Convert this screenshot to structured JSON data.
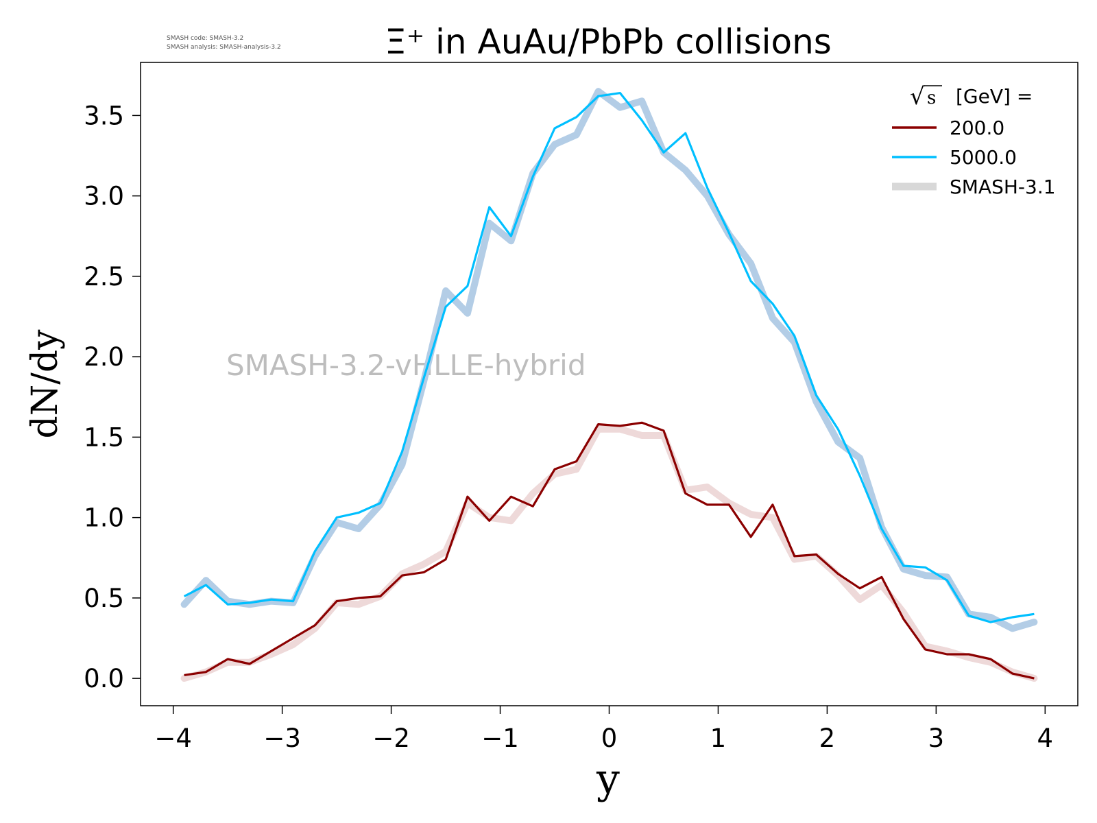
{
  "meta": {
    "code_line": "SMASH code:      SMASH-3.2",
    "analysis_line": "SMASH analysis: SMASH-analysis-3.2"
  },
  "chart_data": {
    "type": "line",
    "title": "Ξ⁺ in AuAu/PbPb collisions",
    "xlabel": "y",
    "ylabel": "dN/dy",
    "xlim": [
      -4.3,
      4.3
    ],
    "ylim": [
      -0.17,
      3.83
    ],
    "xticks": [
      -4,
      -3,
      -2,
      -1,
      0,
      1,
      2,
      3,
      4
    ],
    "xtick_labels": [
      "−4",
      "−3",
      "−2",
      "−1",
      "0",
      "1",
      "2",
      "3",
      "4"
    ],
    "yticks": [
      0.0,
      0.5,
      1.0,
      1.5,
      2.0,
      2.5,
      3.0,
      3.5
    ],
    "ytick_labels": [
      "0.0",
      "0.5",
      "1.0",
      "1.5",
      "2.0",
      "2.5",
      "3.0",
      "3.5"
    ],
    "grid": false,
    "watermark": "SMASH-3.2-vHLLE-hybrid",
    "legend": {
      "placement": "top-right",
      "title_prefix": "√s",
      "title_suffix": "[GeV] =",
      "entries": [
        "200.0",
        "5000.0",
        "SMASH-3.1"
      ]
    },
    "x": [
      -3.9,
      -3.7,
      -3.5,
      -3.3,
      -3.1,
      -2.9,
      -2.7,
      -2.5,
      -2.3,
      -2.1,
      -1.9,
      -1.7,
      -1.5,
      -1.3,
      -1.1,
      -0.9,
      -0.7,
      -0.5,
      -0.3,
      -0.1,
      0.1,
      0.3,
      0.5,
      0.7,
      0.9,
      1.1,
      1.3,
      1.5,
      1.7,
      1.9,
      2.1,
      2.3,
      2.5,
      2.7,
      2.9,
      3.1,
      3.3,
      3.5,
      3.7,
      3.9
    ],
    "series": [
      {
        "name": "200.0",
        "color": "#8b0000",
        "reference": [
          0.0,
          0.04,
          0.1,
          0.1,
          0.15,
          0.21,
          0.31,
          0.47,
          0.46,
          0.51,
          0.65,
          0.71,
          0.79,
          1.09,
          1.0,
          0.98,
          1.15,
          1.27,
          1.3,
          1.55,
          1.55,
          1.51,
          1.51,
          1.17,
          1.19,
          1.09,
          1.02,
          1.0,
          0.74,
          0.76,
          0.64,
          0.49,
          0.58,
          0.41,
          0.2,
          0.17,
          0.13,
          0.1,
          0.04,
          0.0
        ],
        "values": [
          0.02,
          0.04,
          0.12,
          0.09,
          0.17,
          0.25,
          0.33,
          0.48,
          0.5,
          0.51,
          0.64,
          0.66,
          0.74,
          1.13,
          0.98,
          1.13,
          1.07,
          1.3,
          1.35,
          1.58,
          1.57,
          1.59,
          1.54,
          1.15,
          1.08,
          1.08,
          0.88,
          1.08,
          0.76,
          0.77,
          0.65,
          0.56,
          0.63,
          0.37,
          0.18,
          0.15,
          0.15,
          0.12,
          0.03,
          0.0
        ]
      },
      {
        "name": "5000.0",
        "color": "#00bfff",
        "reference": [
          0.46,
          0.61,
          0.48,
          0.46,
          0.48,
          0.47,
          0.76,
          0.97,
          0.93,
          1.08,
          1.33,
          1.85,
          2.41,
          2.27,
          2.83,
          2.72,
          3.14,
          3.32,
          3.38,
          3.65,
          3.55,
          3.59,
          3.27,
          3.16,
          3.0,
          2.76,
          2.58,
          2.24,
          2.09,
          1.72,
          1.47,
          1.37,
          0.94,
          0.68,
          0.64,
          0.63,
          0.4,
          0.38,
          0.31,
          0.35
        ],
        "values": [
          0.51,
          0.58,
          0.46,
          0.47,
          0.49,
          0.48,
          0.79,
          1.0,
          1.03,
          1.09,
          1.41,
          1.87,
          2.31,
          2.44,
          2.93,
          2.75,
          3.12,
          3.42,
          3.49,
          3.62,
          3.64,
          3.47,
          3.27,
          3.39,
          3.05,
          2.77,
          2.47,
          2.33,
          2.13,
          1.76,
          1.55,
          1.26,
          0.93,
          0.7,
          0.69,
          0.61,
          0.39,
          0.35,
          0.38,
          0.4
        ]
      }
    ]
  }
}
